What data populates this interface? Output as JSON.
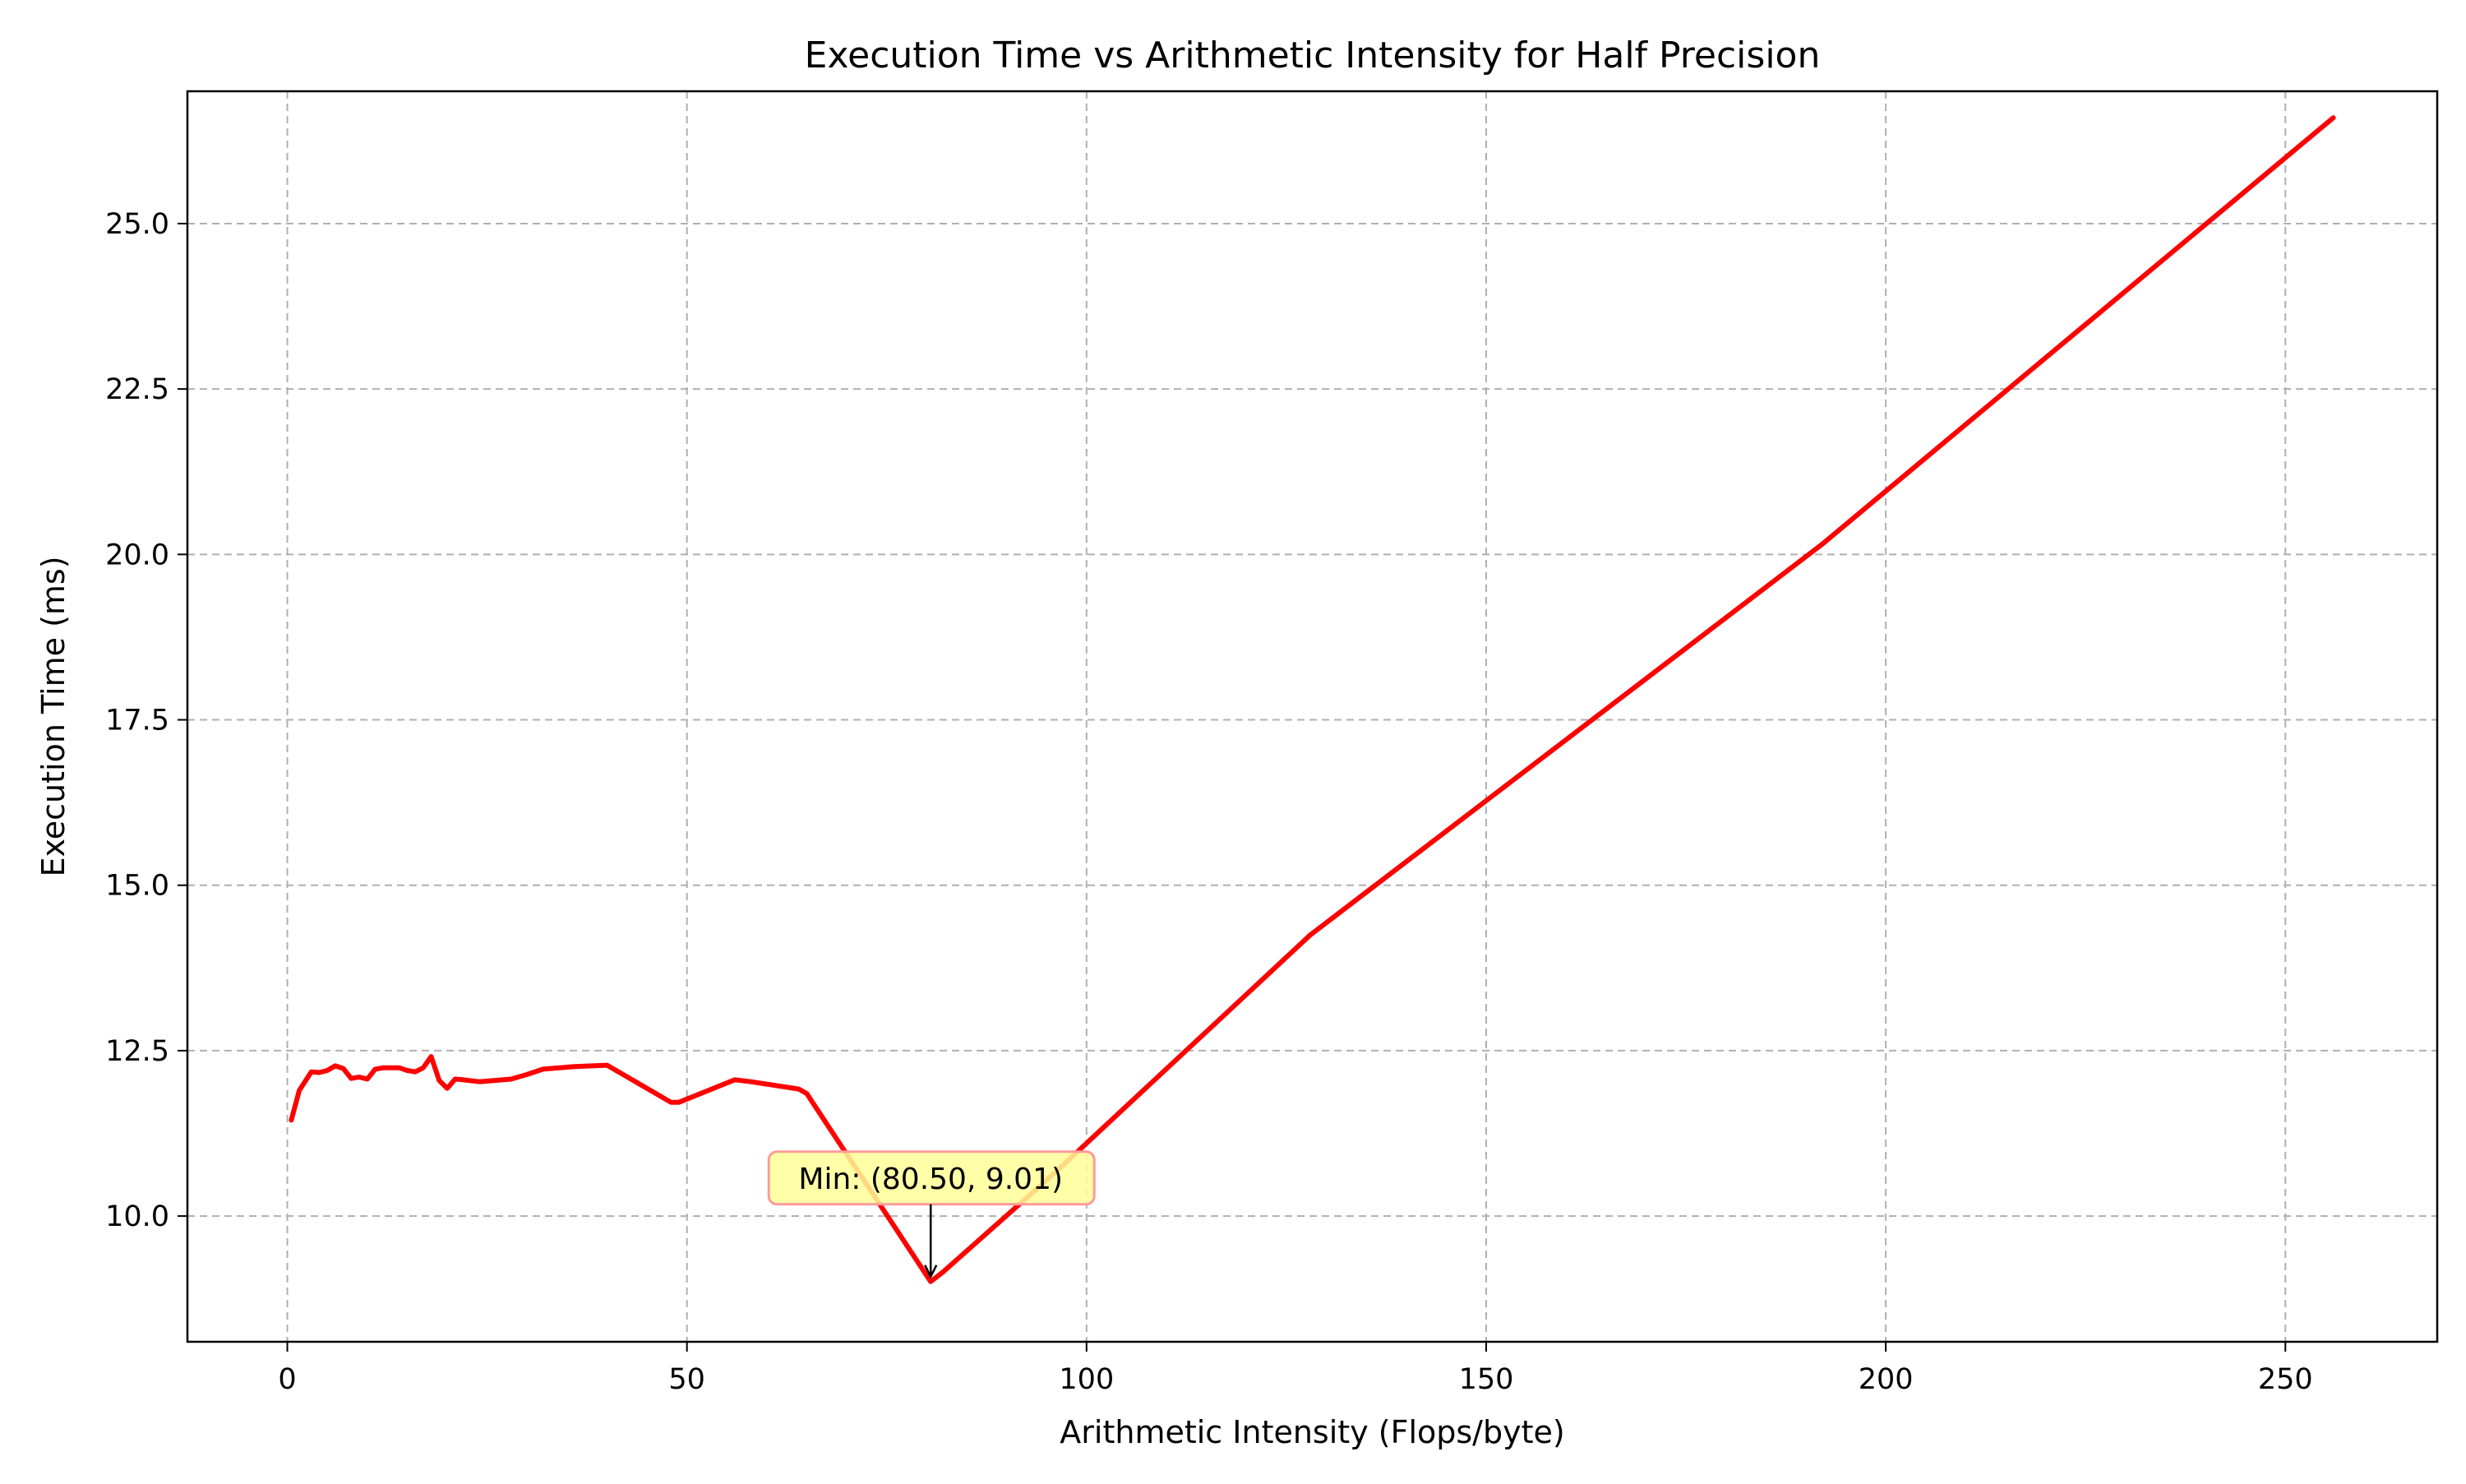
{
  "chart_data": {
    "type": "line",
    "title": "Execution Time vs Arithmetic Intensity for Half Precision",
    "xlabel": "Arithmetic Intensity (Flops/byte)",
    "ylabel": "Execution Time (ms)",
    "xlim": [
      -12.5,
      269
    ],
    "ylim": [
      8.1,
      27.0
    ],
    "xticks": [
      0,
      50,
      100,
      150,
      200,
      250
    ],
    "yticks": [
      10.0,
      12.5,
      15.0,
      17.5,
      20.0,
      22.5,
      25.0
    ],
    "xtick_labels": [
      "0",
      "50",
      "100",
      "150",
      "200",
      "250"
    ],
    "ytick_labels": [
      "10.0",
      "12.5",
      "15.0",
      "17.5",
      "20.0",
      "22.5",
      "25.0"
    ],
    "grid": true,
    "grid_style": "dashed",
    "line_color": "#ff0000",
    "series": [
      {
        "x": [
          0.5,
          1.5,
          3.0,
          4.0,
          5.0,
          6.0,
          7.0,
          8.0,
          9.0,
          10.0,
          11.0,
          12.0,
          14.0,
          15.0,
          16.0,
          17.0,
          18.0,
          19.0,
          20.0,
          21.0,
          22.0,
          24.0,
          26.0,
          28.0,
          30.0,
          32.0,
          36.0,
          40.0,
          48.0,
          49.0,
          56.0,
          58.0,
          64.0,
          65.0,
          80.5,
          82.0,
          96.0,
          128.0,
          192.0,
          256.0
        ],
        "y": [
          11.45,
          11.9,
          12.18,
          12.17,
          12.2,
          12.27,
          12.23,
          12.08,
          12.1,
          12.07,
          12.22,
          12.24,
          12.24,
          12.2,
          12.18,
          12.24,
          12.41,
          12.05,
          11.93,
          12.07,
          12.06,
          12.03,
          12.05,
          12.07,
          12.14,
          12.22,
          12.26,
          12.28,
          11.72,
          11.72,
          12.06,
          12.03,
          11.92,
          11.85,
          9.01,
          9.15,
          10.65,
          14.25,
          20.15,
          26.6
        ]
      }
    ],
    "annotation": {
      "text": "Min: (80.50, 9.01)",
      "x": 80.5,
      "y": 9.01,
      "box_color": "#ffff99",
      "edge_color": "#ff9999"
    }
  }
}
